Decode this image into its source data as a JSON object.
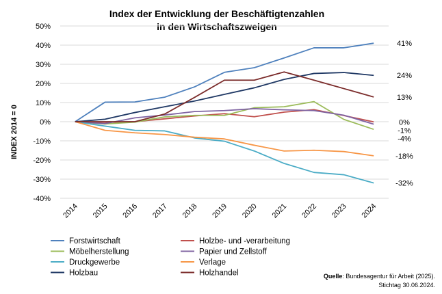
{
  "chart_data": {
    "type": "line",
    "title": [
      "Index der Entwicklung der Beschäftigtenzahlen",
      "in den Wirtschaftszweigen"
    ],
    "ylabel": "INDEX 2014 = 0",
    "xlabel": "",
    "ylim": [
      -40,
      50
    ],
    "yticks": [
      "-40%",
      "-30%",
      "-20%",
      "-10%",
      "0%",
      "10%",
      "20%",
      "30%",
      "40%",
      "50%"
    ],
    "categories": [
      "2014",
      "2015",
      "2016",
      "2017",
      "2018",
      "2019",
      "2020",
      "2021",
      "2022",
      "2023",
      "2024"
    ],
    "series": [
      {
        "name": "Forstwirtschaft",
        "color": "#4f81bd",
        "values": [
          0,
          10.2,
          10.3,
          12.8,
          18.2,
          25.8,
          28.2,
          33.3,
          38.6,
          38.6,
          41.0
        ],
        "end_label": "41%"
      },
      {
        "name": "Holzbe- und -verarbeitung",
        "color": "#c0504d",
        "values": [
          0,
          -0.3,
          0,
          1.5,
          3.0,
          4.2,
          2.6,
          5.0,
          6.3,
          3.2,
          -0.1
        ],
        "end_label": "0%"
      },
      {
        "name": "Möbelherstellung",
        "color": "#9bbb59",
        "values": [
          0,
          -1.2,
          -0.2,
          2.5,
          3.3,
          3.3,
          7.3,
          7.8,
          10.5,
          1.2,
          -4.0
        ],
        "end_label": "-4%"
      },
      {
        "name": "Papier und Zellstoff",
        "color": "#8064a2",
        "values": [
          0,
          -1.0,
          2.0,
          3.5,
          5.3,
          5.8,
          6.8,
          6.2,
          5.8,
          3.4,
          -1.3
        ],
        "end_label": "-1%"
      },
      {
        "name": "Druckgewerbe",
        "color": "#4bacc6",
        "values": [
          0,
          -2.3,
          -4.5,
          -4.8,
          -8.5,
          -10.2,
          -15.3,
          -21.8,
          -26.5,
          -27.7,
          -32.0
        ],
        "end_label": "-32%"
      },
      {
        "name": "Verlage",
        "color": "#f79646",
        "values": [
          0,
          -4.5,
          -5.8,
          -6.7,
          -8.1,
          -9.0,
          -12.3,
          -15.3,
          -14.9,
          -15.6,
          -17.8
        ],
        "end_label": "-18%"
      },
      {
        "name": "Holzbau",
        "color": "#1f3864",
        "values": [
          0,
          1.3,
          4.8,
          7.8,
          10.8,
          14.3,
          17.7,
          22.1,
          25.2,
          25.7,
          24.2
        ],
        "end_label": "24%"
      },
      {
        "name": "Holzhandel",
        "color": "#7b2c2b",
        "values": [
          0,
          0,
          0,
          4.0,
          12.7,
          21.7,
          21.7,
          26.0,
          21.7,
          17.3,
          12.9
        ],
        "end_label": "13%"
      }
    ],
    "legend_position": "bottom-left"
  },
  "source": {
    "label": "Quelle",
    "text": ": Bundesagentur für Arbeit (2025).",
    "line2": "Stichtag 30.06.2024."
  }
}
